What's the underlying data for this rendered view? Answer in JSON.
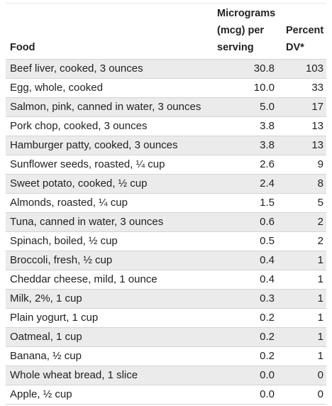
{
  "table": {
    "headers": {
      "food": "Food",
      "mcg_line1": "Micrograms",
      "mcg_line2": "(mcg) per",
      "mcg_line3": "serving",
      "dv_line1": "Percent",
      "dv_line2": "DV*"
    },
    "rows": [
      {
        "food": "Beef liver, cooked, 3 ounces",
        "mcg": "30.8",
        "dv": "103"
      },
      {
        "food": "Egg, whole, cooked",
        "mcg": "10.0",
        "dv": "33"
      },
      {
        "food": "Salmon, pink, canned in water, 3 ounces",
        "mcg": "5.0",
        "dv": "17"
      },
      {
        "food": "Pork chop, cooked, 3 ounces",
        "mcg": "3.8",
        "dv": "13"
      },
      {
        "food": "Hamburger patty, cooked, 3 ounces",
        "mcg": "3.8",
        "dv": "13"
      },
      {
        "food": "Sunflower seeds, roasted, ¼ cup",
        "mcg": "2.6",
        "dv": "9"
      },
      {
        "food": "Sweet potato, cooked, ½ cup",
        "mcg": "2.4",
        "dv": "8"
      },
      {
        "food": "Almonds, roasted, ¼ cup",
        "mcg": "1.5",
        "dv": "5"
      },
      {
        "food": "Tuna, canned in water, 3 ounces",
        "mcg": "0.6",
        "dv": "2"
      },
      {
        "food": "Spinach, boiled, ½ cup",
        "mcg": "0.5",
        "dv": "2"
      },
      {
        "food": "Broccoli, fresh, ½ cup",
        "mcg": "0.4",
        "dv": "1"
      },
      {
        "food": "Cheddar cheese, mild, 1 ounce",
        "mcg": "0.4",
        "dv": "1"
      },
      {
        "food": "Milk, 2%, 1 cup",
        "mcg": "0.3",
        "dv": "1"
      },
      {
        "food": "Plain yogurt, 1 cup",
        "mcg": "0.2",
        "dv": "1"
      },
      {
        "food": "Oatmeal, 1 cup",
        "mcg": "0.2",
        "dv": "1"
      },
      {
        "food": "Banana, ½ cup",
        "mcg": "0.2",
        "dv": "1"
      },
      {
        "food": "Whole wheat bread, 1 slice",
        "mcg": "0.0",
        "dv": "0"
      },
      {
        "food": "Apple, ½ cup",
        "mcg": "0.0",
        "dv": "0"
      }
    ]
  },
  "colors": {
    "stripe": "#ebebeb",
    "text": "#222222",
    "rule": "#d4d4d4"
  }
}
